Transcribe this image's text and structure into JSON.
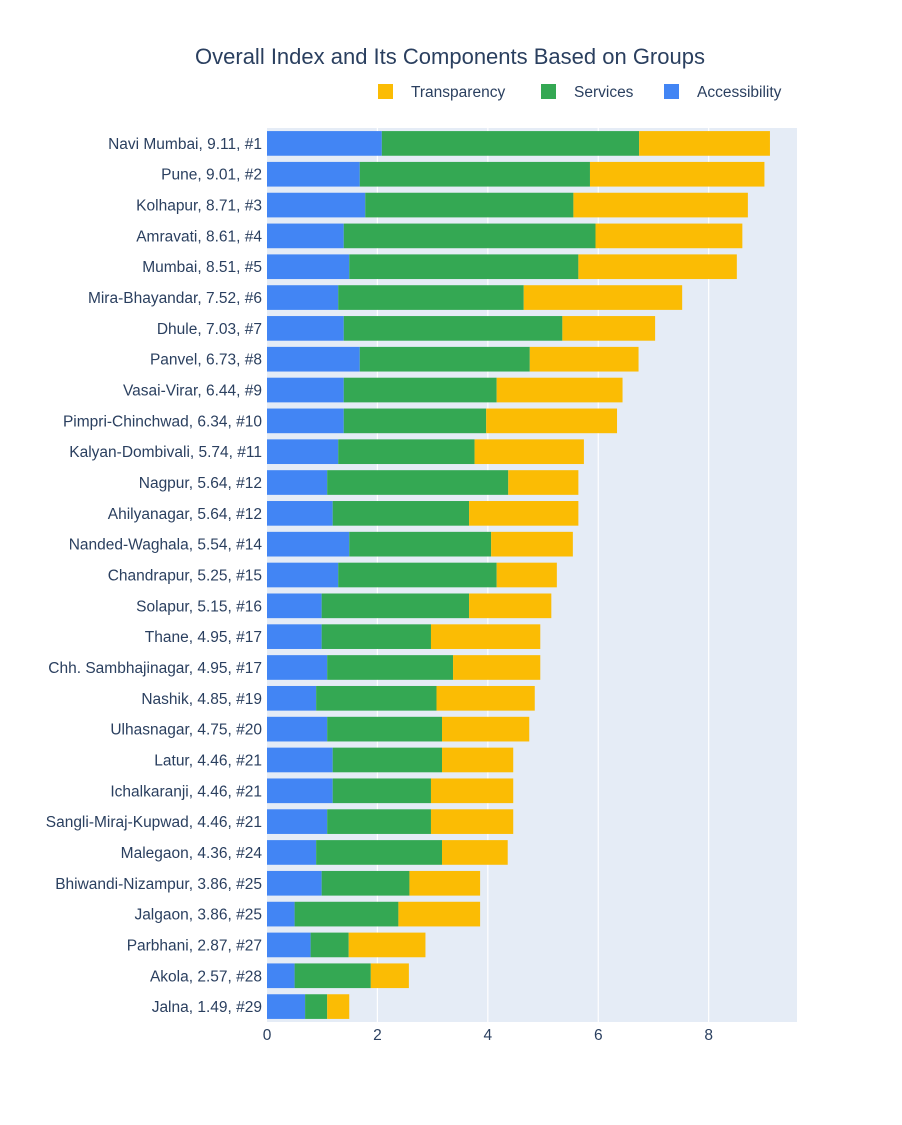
{
  "chart_data": {
    "type": "bar",
    "orientation": "horizontal",
    "barmode": "stack",
    "title": "Overall Index and Its Components Based on Groups",
    "xlabel": "",
    "ylabel": "",
    "xlim": [
      0,
      9.6
    ],
    "x_ticks": [
      0,
      2,
      4,
      6,
      8
    ],
    "grid": true,
    "legend_placement": "top-right",
    "legend": [
      "Transparency",
      "Services",
      "Accessibility"
    ],
    "categories": [
      "Navi Mumbai, 9.11, #1",
      "Pune, 9.01, #2",
      "Kolhapur, 8.71, #3",
      "Amravati, 8.61, #4",
      "Mumbai, 8.51, #5",
      "Mira-Bhayandar, 7.52, #6",
      "Dhule, 7.03, #7",
      "Panvel, 6.73, #8",
      "Vasai-Virar, 6.44, #9",
      "Pimpri-Chinchwad, 6.34, #10",
      "Kalyan-Dombivali, 5.74, #11",
      "Nagpur, 5.64, #12",
      "Ahilyanagar, 5.64, #12",
      "Nanded-Waghala, 5.54, #14",
      "Chandrapur, 5.25, #15",
      "Solapur, 5.15, #16",
      "Thane, 4.95, #17",
      "Chh. Sambhajinagar, 4.95, #17",
      "Nashik, 4.85, #19",
      "Ulhasnagar, 4.75, #20",
      "Latur, 4.46, #21",
      "Ichalkaranji, 4.46, #21",
      "Sangli-Miraj-Kupwad, 4.46, #21",
      "Malegaon, 4.36, #24",
      "Bhiwandi-Nizampur, 3.86, #25",
      "Jalgaon, 3.86, #25",
      "Parbhani, 2.87, #27",
      "Akola, 2.57, #28",
      "Jalna, 1.49, #29"
    ],
    "series": [
      {
        "name": "Accessibility",
        "color": "#4285f4",
        "values": [
          2.08,
          1.68,
          1.78,
          1.39,
          1.49,
          1.29,
          1.39,
          1.68,
          1.39,
          1.39,
          1.29,
          1.09,
          1.19,
          1.49,
          1.29,
          0.99,
          0.99,
          1.09,
          0.89,
          1.09,
          1.19,
          1.19,
          1.09,
          0.89,
          0.99,
          0.5,
          0.79,
          0.5,
          0.69
        ]
      },
      {
        "name": "Services",
        "color": "#34a853",
        "values": [
          4.66,
          4.17,
          3.77,
          4.56,
          4.15,
          3.36,
          3.96,
          3.08,
          2.77,
          2.58,
          2.47,
          3.28,
          2.47,
          2.57,
          2.87,
          2.67,
          1.98,
          2.28,
          2.18,
          2.08,
          1.98,
          1.78,
          1.88,
          2.28,
          1.59,
          1.88,
          0.69,
          1.38,
          0.4
        ]
      },
      {
        "name": "Transparency",
        "color": "#fbbc04",
        "values": [
          2.37,
          3.16,
          3.16,
          2.66,
          2.87,
          2.87,
          1.68,
          1.97,
          2.28,
          2.37,
          1.98,
          1.27,
          1.98,
          1.48,
          1.09,
          1.49,
          1.98,
          1.58,
          1.78,
          1.58,
          1.29,
          1.49,
          1.49,
          1.19,
          1.28,
          1.48,
          1.39,
          0.69,
          0.4
        ]
      }
    ]
  }
}
